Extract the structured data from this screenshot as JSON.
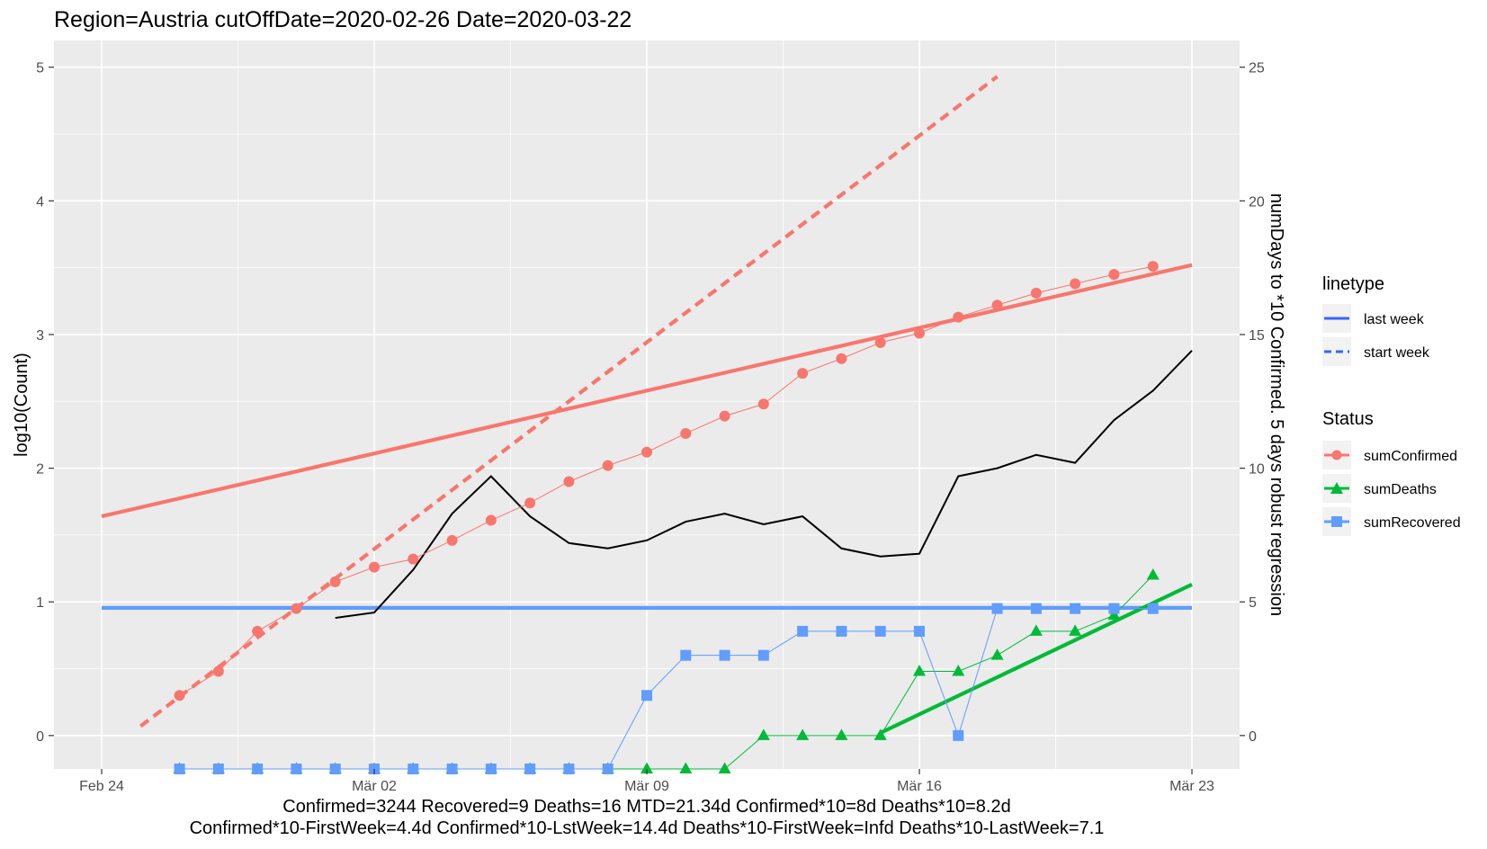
{
  "chart_data": {
    "type": "line",
    "title": "Region=Austria cutOffDate=2020-02-26 Date=2020-03-22",
    "ylabel": "log10(Count)",
    "y2label": "numDays to *10 Confirmed. 5 days robust regression",
    "xlabel": "",
    "x_ticks": [
      "Feb 24",
      "Mär 02",
      "Mär 09",
      "Mär 16",
      "Mär 23"
    ],
    "y_ticks": [
      "0",
      "1",
      "2",
      "3",
      "4",
      "5"
    ],
    "y2_ticks": [
      "0",
      "5",
      "10",
      "15",
      "20",
      "25"
    ],
    "xlim": [
      "2020-02-24",
      "2020-03-23"
    ],
    "ylim": [
      -0.25,
      5.2
    ],
    "y2lim": [
      -1.25,
      26
    ],
    "grid": true,
    "caption_lines": [
      "Confirmed=3244 Recovered=9 Deaths=16  MTD=21.34d   Confirmed*10=8d  Deaths*10=8.2d",
      "Confirmed*10-FirstWeek=4.4d  Confirmed*10-LstWeek=14.4d    Deaths*10-FirstWeek=Infd  Deaths*10-LastWeek=7.1"
    ],
    "legend": {
      "placement": "right",
      "linetype_title": "linetype",
      "linetype_items": [
        {
          "label": "last week",
          "dash": "solid"
        },
        {
          "label": "start week",
          "dash": "dashed"
        }
      ],
      "status_title": "Status",
      "status_items": [
        {
          "label": "sumConfirmed",
          "color": "#F8766D",
          "shape": "circle"
        },
        {
          "label": "sumDeaths",
          "color": "#00BA38",
          "shape": "triangle"
        },
        {
          "label": "sumRecovered",
          "color": "#619CFF",
          "shape": "square"
        }
      ]
    },
    "dates": [
      "2020-02-26",
      "2020-02-27",
      "2020-02-28",
      "2020-02-29",
      "2020-03-01",
      "2020-03-02",
      "2020-03-03",
      "2020-03-04",
      "2020-03-05",
      "2020-03-06",
      "2020-03-07",
      "2020-03-08",
      "2020-03-09",
      "2020-03-10",
      "2020-03-11",
      "2020-03-12",
      "2020-03-13",
      "2020-03-14",
      "2020-03-15",
      "2020-03-16",
      "2020-03-17",
      "2020-03-18",
      "2020-03-19",
      "2020-03-20",
      "2020-03-21",
      "2020-03-22"
    ],
    "series": [
      {
        "name": "sumConfirmed",
        "color": "#F8766D",
        "shape": "circle",
        "values": [
          0.3,
          0.48,
          0.78,
          0.95,
          1.15,
          1.26,
          1.32,
          1.46,
          1.61,
          1.74,
          1.9,
          2.02,
          2.12,
          2.26,
          2.39,
          2.48,
          2.71,
          2.82,
          2.94,
          3.01,
          3.13,
          3.22,
          3.31,
          3.38,
          3.45,
          3.51
        ]
      },
      {
        "name": "sumDeaths",
        "color": "#00BA38",
        "shape": "triangle",
        "values": [
          -0.25,
          -0.25,
          -0.25,
          -0.25,
          -0.25,
          -0.25,
          -0.25,
          -0.25,
          -0.25,
          -0.25,
          -0.25,
          -0.25,
          -0.25,
          -0.25,
          -0.25,
          0.0,
          0.0,
          0.0,
          0.0,
          0.48,
          0.48,
          0.6,
          0.78,
          0.78,
          0.9,
          1.2
        ]
      },
      {
        "name": "sumRecovered",
        "color": "#619CFF",
        "shape": "square",
        "values": [
          -0.25,
          -0.25,
          -0.25,
          -0.25,
          -0.25,
          -0.25,
          -0.25,
          -0.25,
          -0.25,
          -0.25,
          -0.25,
          -0.25,
          0.3,
          0.6,
          0.6,
          0.6,
          0.78,
          0.78,
          0.78,
          0.78,
          0.0,
          0.95,
          0.95,
          0.95,
          0.95,
          0.95
        ]
      }
    ],
    "days_series": {
      "color": "#000000",
      "axis": "right",
      "dates": [
        "2020-03-01",
        "2020-03-02",
        "2020-03-03",
        "2020-03-04",
        "2020-03-05",
        "2020-03-06",
        "2020-03-07",
        "2020-03-08",
        "2020-03-09",
        "2020-03-10",
        "2020-03-11",
        "2020-03-12",
        "2020-03-13",
        "2020-03-14",
        "2020-03-15",
        "2020-03-16",
        "2020-03-17",
        "2020-03-18",
        "2020-03-19",
        "2020-03-20",
        "2020-03-21",
        "2020-03-22",
        "2020-03-23"
      ],
      "values": [
        4.4,
        4.6,
        6.2,
        8.3,
        9.7,
        8.2,
        7.2,
        7.0,
        7.3,
        8.0,
        8.3,
        7.9,
        8.2,
        7.0,
        6.7,
        6.8,
        9.7,
        10.0,
        10.5,
        10.2,
        11.8,
        12.9,
        14.4
      ]
    },
    "fit_lines": [
      {
        "name": "confirmed last week",
        "color": "#F8766D",
        "dash": "solid",
        "x": [
          "2020-02-24",
          "2020-03-23"
        ],
        "y": [
          1.64,
          3.52
        ]
      },
      {
        "name": "confirmed start week",
        "color": "#F8766D",
        "dash": "dashed",
        "x": [
          "2020-02-25",
          "2020-03-18"
        ],
        "y": [
          0.07,
          4.93
        ]
      },
      {
        "name": "recovered last week",
        "color": "#619CFF",
        "dash": "solid",
        "x": [
          "2020-02-24",
          "2020-03-23"
        ],
        "y": [
          0.955,
          0.955
        ]
      },
      {
        "name": "deaths last week",
        "color": "#00BA38",
        "dash": "solid",
        "x": [
          "2020-03-15",
          "2020-03-23"
        ],
        "y": [
          0.02,
          1.13
        ]
      }
    ]
  }
}
